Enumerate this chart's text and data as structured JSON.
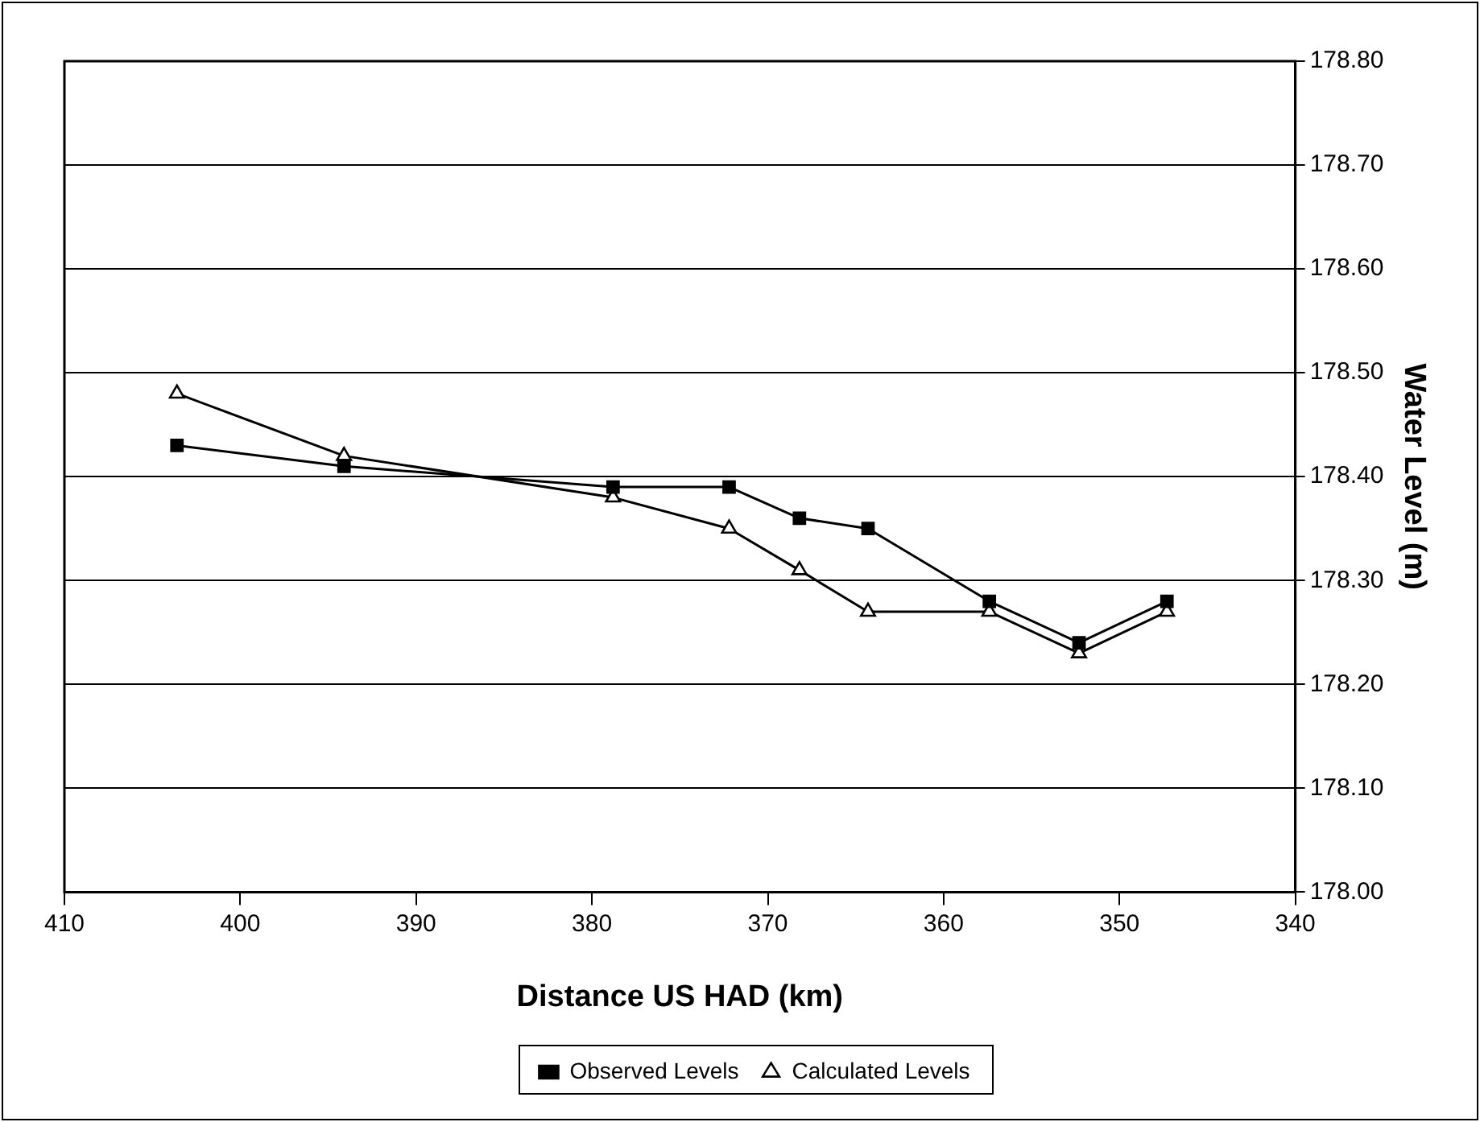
{
  "chart_data": {
    "type": "line",
    "xlabel": "Distance US HAD (km)",
    "ylabel": "Water Level (m)",
    "xlim": [
      410,
      340
    ],
    "xticks": [
      410,
      400,
      390,
      380,
      370,
      360,
      350,
      340
    ],
    "ylim": [
      178.0,
      178.8
    ],
    "yticks": [
      {
        "value": 178.0,
        "label": "178.00"
      },
      {
        "value": 178.1,
        "label": "178.10"
      },
      {
        "value": 178.2,
        "label": "178.20"
      },
      {
        "value": 178.3,
        "label": "178.30"
      },
      {
        "value": 178.4,
        "label": "178.40"
      },
      {
        "value": 178.5,
        "label": "178.50"
      },
      {
        "value": 178.6,
        "label": "178.60"
      },
      {
        "value": 178.7,
        "label": "178.70"
      },
      {
        "value": 178.8,
        "label": "178.80"
      }
    ],
    "x": [
      403.6,
      394.1,
      378.8,
      372.2,
      368.2,
      364.3,
      357.4,
      352.3,
      347.3
    ],
    "series": [
      {
        "name": "Observed Levels",
        "color": "#000000",
        "marker": "square",
        "values": [
          178.43,
          178.41,
          178.39,
          178.39,
          178.36,
          178.35,
          178.28,
          178.24,
          178.28
        ]
      },
      {
        "name": "Calculated Levels",
        "color": "#000000",
        "marker": "triangle",
        "values": [
          178.48,
          178.42,
          178.38,
          178.35,
          178.31,
          178.27,
          178.27,
          178.23,
          178.27
        ]
      }
    ],
    "grid": "y",
    "legend": "bottom",
    "line_style": "solid"
  }
}
